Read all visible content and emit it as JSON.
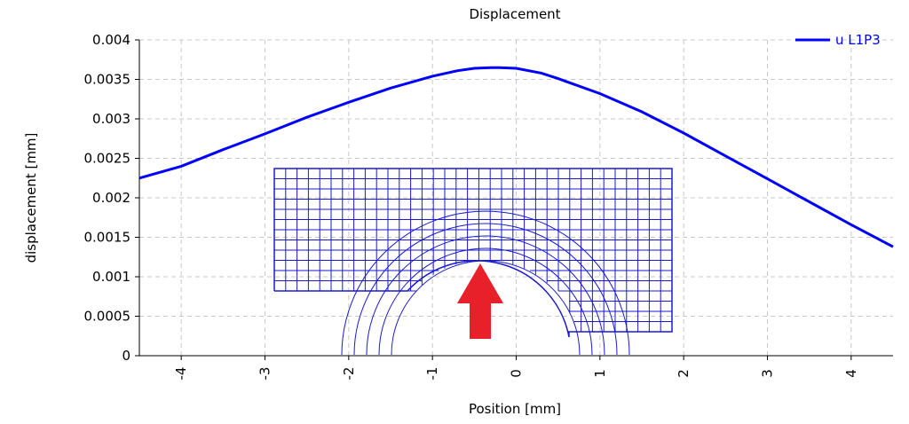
{
  "chart_data": {
    "type": "line",
    "title": "Displacement",
    "xlabel": "Position [mm]",
    "ylabel": "displacement [mm]",
    "xlim": [
      -4.5,
      4.5
    ],
    "ylim": [
      0,
      0.004
    ],
    "grid": true,
    "legend": {
      "position": "top-right",
      "entries": [
        "u L1P3"
      ]
    },
    "x_ticks": [
      -4,
      -3,
      -2,
      -1,
      0,
      1,
      2,
      3,
      4
    ],
    "x_tick_labels": [
      "-4",
      "-3",
      "-2",
      "-1",
      "0",
      "1",
      "2",
      "3",
      "4"
    ],
    "y_ticks": [
      0,
      0.0005,
      0.001,
      0.0015,
      0.002,
      0.0025,
      0.003,
      0.0035,
      0.004
    ],
    "y_tick_labels": [
      "0",
      "0.0005",
      "0.001",
      "0.0015",
      "0.002",
      "0.0025",
      "0.003",
      "0.0035",
      "0.004"
    ],
    "series": [
      {
        "name": "u L1P3",
        "color": "#0000ff",
        "x": [
          -4.5,
          -4.0,
          -3.5,
          -3.0,
          -2.5,
          -2.0,
          -1.5,
          -1.0,
          -0.7,
          -0.5,
          -0.3,
          -0.2,
          0.0,
          0.3,
          0.5,
          1.0,
          1.5,
          2.0,
          2.5,
          3.0,
          3.5,
          4.0,
          4.5
        ],
        "y": [
          0.00225,
          0.0024,
          0.00261,
          0.00281,
          0.00302,
          0.00321,
          0.00339,
          0.00354,
          0.00361,
          0.00364,
          0.00365,
          0.00365,
          0.00364,
          0.00358,
          0.00351,
          0.00332,
          0.00309,
          0.00282,
          0.00253,
          0.00224,
          0.00195,
          0.00166,
          0.00138
        ]
      }
    ],
    "annotation": {
      "type": "mesh-inset-with-arrow",
      "arrow_color": "#e8202a",
      "mesh_color": "#1a1ad0"
    }
  }
}
